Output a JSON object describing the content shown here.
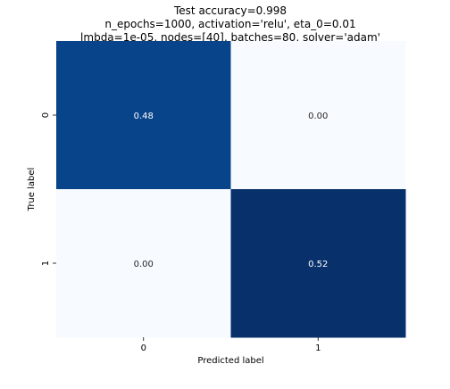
{
  "chart_data": {
    "type": "heatmap",
    "title_lines": [
      "Test accuracy=0.998",
      "n_epochs=1000, activation='relu', eta_0=0.01",
      "lmbda=1e-05, nodes=[40], batches=80, solver='adam'"
    ],
    "xlabel": "Predicted label",
    "ylabel": "True label",
    "x_categories": [
      "0",
      "1"
    ],
    "y_categories": [
      "0",
      "1"
    ],
    "values": [
      [
        0.48,
        0.0
      ],
      [
        0.0,
        0.52
      ]
    ],
    "value_format": "0.00",
    "colormap": "Blues",
    "color_range": [
      0.0,
      0.52
    ],
    "colors": {
      "low": "#f7fbff",
      "mid_high": "#08468b",
      "high": "#08306b",
      "text_on_dark": "#ffffff",
      "text_on_light": "#262626"
    },
    "colorbar": false,
    "grid": false
  }
}
